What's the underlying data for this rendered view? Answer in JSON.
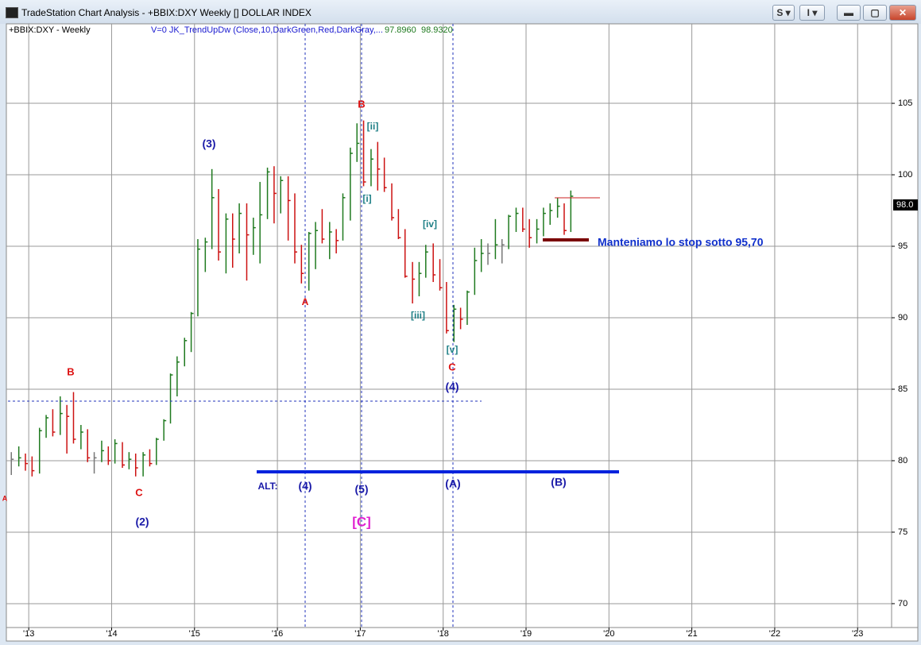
{
  "window": {
    "title": "TradeStation Chart Analysis - +BBIX:DXY Weekly [] DOLLAR INDEX",
    "buttons": [
      "S",
      "I"
    ]
  },
  "chart_data": {
    "type": "ohlc",
    "symbol_label": "+BBIX:DXY - Weekly",
    "indicator_label": "V=0  JK_TrendUpDw  (Close,10,DarkGreen,Red,DarkGray,...",
    "indicator_values": [
      "97.8960",
      "98.9320"
    ],
    "last_price": "98.0",
    "up_color": "#1f7a1f",
    "down_color": "#cc1111",
    "flat_color": "#777777",
    "grid": true,
    "xlim": [
      2012.73,
      2023.41
    ],
    "xticks": [
      {
        "value": 2013,
        "label": "'13"
      },
      {
        "value": 2014,
        "label": "'14"
      },
      {
        "value": 2015,
        "label": "'15"
      },
      {
        "value": 2016,
        "label": "'16"
      },
      {
        "value": 2017,
        "label": "'17"
      },
      {
        "value": 2018,
        "label": "'18"
      },
      {
        "value": 2019,
        "label": "'19"
      },
      {
        "value": 2020,
        "label": "'20"
      },
      {
        "value": 2021,
        "label": "'21"
      },
      {
        "value": 2022,
        "label": "'22"
      },
      {
        "value": 2023,
        "label": "'23"
      }
    ],
    "ylim": [
      68.33,
      110.56
    ],
    "yticks": [
      70,
      75,
      80,
      85,
      90,
      95,
      100,
      105
    ],
    "x": [
      2012.79,
      2012.88,
      2012.96,
      2013.04,
      2013.13,
      2013.21,
      2013.29,
      2013.38,
      2013.46,
      2013.54,
      2013.63,
      2013.71,
      2013.79,
      2013.88,
      2013.96,
      2014.04,
      2014.13,
      2014.21,
      2014.29,
      2014.38,
      2014.46,
      2014.54,
      2014.63,
      2014.71,
      2014.79,
      2014.88,
      2014.96,
      2015.04,
      2015.13,
      2015.21,
      2015.29,
      2015.38,
      2015.46,
      2015.54,
      2015.63,
      2015.71,
      2015.79,
      2015.88,
      2015.96,
      2016.04,
      2016.13,
      2016.21,
      2016.29,
      2016.38,
      2016.46,
      2016.54,
      2016.63,
      2016.71,
      2016.79,
      2016.88,
      2016.96,
      2017.04,
      2017.13,
      2017.21,
      2017.29,
      2017.38,
      2017.46,
      2017.54,
      2017.63,
      2017.71,
      2017.79,
      2017.88,
      2017.96,
      2018.04,
      2018.13,
      2018.21,
      2018.29,
      2018.38,
      2018.46,
      2018.54,
      2018.63,
      2018.71,
      2018.79,
      2018.88,
      2018.96,
      2019.04,
      2019.13,
      2019.21,
      2019.29,
      2019.38,
      2019.46,
      2019.54
    ],
    "high": [
      80.6,
      81.0,
      80.5,
      80.3,
      82.3,
      83.2,
      83.6,
      84.5,
      83.9,
      84.8,
      82.5,
      82.2,
      80.6,
      81.4,
      81.0,
      81.5,
      81.3,
      80.6,
      80.5,
      80.6,
      80.8,
      81.6,
      82.9,
      86.1,
      87.3,
      88.6,
      90.4,
      95.5,
      95.6,
      100.4,
      99.0,
      97.3,
      97.3,
      98.0,
      98.0,
      97.0,
      99.5,
      100.5,
      100.6,
      99.9,
      99.9,
      98.7,
      95.1,
      96.0,
      96.7,
      97.6,
      96.7,
      96.2,
      98.7,
      101.9,
      103.6,
      103.8,
      101.8,
      102.3,
      101.2,
      99.4,
      97.6,
      96.2,
      93.9,
      93.9,
      95.1,
      95.2,
      94.1,
      92.5,
      90.9,
      90.7,
      91.9,
      94.9,
      95.5,
      95.2,
      96.9,
      95.5,
      97.2,
      97.7,
      97.7,
      96.9,
      96.9,
      97.7,
      98.0,
      98.4,
      98.0,
      98.9
    ],
    "low": [
      79.0,
      79.6,
      79.3,
      78.9,
      79.1,
      81.6,
      81.7,
      81.8,
      80.5,
      81.2,
      80.8,
      79.9,
      79.1,
      79.9,
      79.7,
      79.8,
      79.5,
      79.4,
      78.9,
      78.9,
      79.6,
      79.7,
      81.4,
      82.6,
      84.5,
      86.6,
      87.6,
      90.1,
      93.2,
      94.8,
      94.0,
      93.1,
      93.5,
      94.5,
      92.6,
      94.4,
      93.8,
      96.9,
      96.6,
      97.3,
      95.4,
      93.8,
      92.4,
      91.9,
      93.4,
      95.2,
      94.1,
      94.5,
      95.4,
      96.8,
      100.9,
      99.2,
      99.2,
      98.9,
      98.8,
      96.8,
      95.5,
      92.8,
      91.0,
      91.5,
      92.8,
      92.5,
      91.9,
      88.9,
      88.3,
      89.2,
      89.5,
      91.6,
      93.2,
      93.7,
      94.1,
      93.8,
      94.8,
      96.0,
      96.0,
      94.9,
      95.2,
      95.7,
      96.5,
      97.0,
      95.8,
      96.0
    ],
    "close": [
      80.1,
      80.2,
      79.8,
      79.3,
      82.1,
      83.0,
      82.0,
      83.3,
      83.1,
      81.5,
      82.0,
      80.2,
      80.2,
      80.7,
      80.0,
      81.2,
      79.7,
      80.1,
      79.5,
      80.4,
      79.8,
      81.5,
      82.8,
      86.0,
      86.9,
      88.4,
      90.3,
      94.8,
      95.3,
      98.4,
      94.6,
      96.9,
      95.5,
      97.3,
      95.8,
      96.3,
      97.2,
      100.2,
      98.7,
      99.6,
      98.2,
      94.6,
      93.1,
      95.9,
      96.1,
      95.5,
      96.0,
      95.4,
      98.4,
      101.5,
      102.2,
      99.5,
      101.1,
      100.4,
      99.1,
      97.0,
      95.6,
      92.9,
      92.7,
      93.1,
      94.6,
      93.0,
      92.1,
      89.1,
      90.6,
      89.9,
      91.8,
      94.0,
      94.5,
      94.5,
      95.1,
      95.1,
      97.1,
      97.3,
      96.2,
      95.6,
      96.2,
      97.3,
      97.5,
      97.8,
      96.1,
      98.5
    ],
    "annotations": [
      "B",
      "C",
      "(2)",
      "(3)",
      "A",
      "B",
      "[ii]",
      "[i]",
      "[iv]",
      "[iii]",
      "[v]",
      "C",
      "(4)",
      "ALT:",
      "(4)",
      "(5)",
      "[C]",
      "(A)",
      "(B)",
      "Manteniamo lo stop sotto 95,70",
      "A"
    ]
  }
}
